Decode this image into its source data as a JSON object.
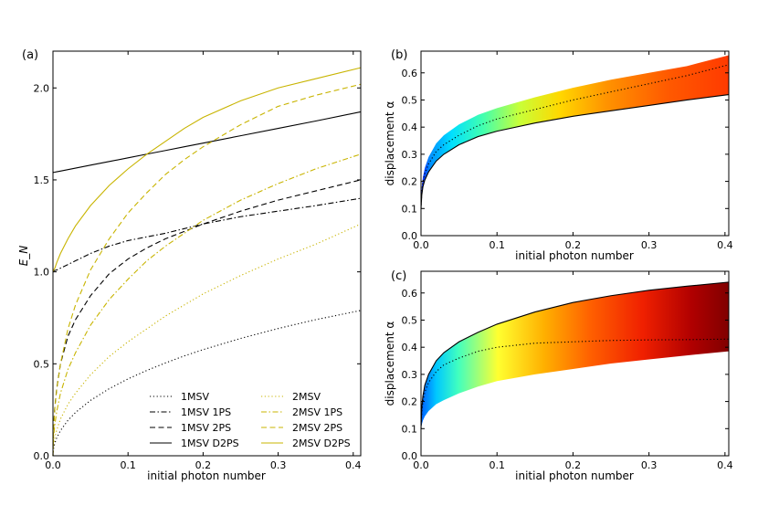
{
  "chart_data": [
    {
      "panel": "(a)",
      "type": "line",
      "xlabel": "initial photon number",
      "ylabel": "E_N",
      "xlim": [
        0,
        0.41
      ],
      "ylim": [
        0,
        2.2
      ],
      "xticks": [
        "0.0",
        "0.1",
        "0.2",
        "0.3",
        "0.4"
      ],
      "yticks": [
        "0.0",
        "0.5",
        "1.0",
        "1.5",
        "2.0"
      ],
      "legend_placement": "lower-right",
      "colors": {
        "black": "#000000",
        "olive": "#c8b400"
      },
      "x": [
        0,
        0.00025,
        0.001,
        0.0025,
        0.005,
        0.01,
        0.02,
        0.03,
        0.05,
        0.075,
        0.1,
        0.125,
        0.15,
        0.175,
        0.2,
        0.25,
        0.3,
        0.35,
        0.41
      ],
      "series": [
        {
          "name": "1MSV",
          "color": "#000000",
          "dash": "dotted",
          "values": [
            0,
            0.0217,
            0.0434,
            0.0687,
            0.0971,
            0.137,
            0.193,
            0.235,
            0.301,
            0.365,
            0.418,
            0.464,
            0.505,
            0.543,
            0.577,
            0.638,
            0.692,
            0.74,
            0.79
          ]
        },
        {
          "name": "1MSV 1PS",
          "color": "#000000",
          "dash": "dashdot",
          "values": [
            1.0,
            1.0025,
            1.005,
            1.0075,
            1.01,
            1.02,
            1.04,
            1.06,
            1.1,
            1.14,
            1.17,
            1.19,
            1.21,
            1.235,
            1.26,
            1.3,
            1.33,
            1.36,
            1.4
          ]
        },
        {
          "name": "1MSV 2PS",
          "color": "#000000",
          "dash": "dashed",
          "values": [
            0,
            0.09,
            0.17,
            0.265,
            0.365,
            0.5,
            0.65,
            0.74,
            0.87,
            0.99,
            1.07,
            1.13,
            1.18,
            1.22,
            1.26,
            1.33,
            1.39,
            1.44,
            1.5
          ]
        },
        {
          "name": "1MSV D2PS",
          "color": "#000000",
          "dash": "solid",
          "values": [
            1.54,
            1.54,
            1.541,
            1.542,
            1.544,
            1.548,
            1.556,
            1.564,
            1.58,
            1.6,
            1.62,
            1.64,
            1.66,
            1.68,
            1.7,
            1.74,
            1.78,
            1.82,
            1.87
          ]
        },
        {
          "name": "2MSV",
          "color": "#c8b400",
          "dash": "dotted",
          "values": [
            0,
            0.03,
            0.065,
            0.1,
            0.14,
            0.2,
            0.28,
            0.34,
            0.44,
            0.54,
            0.62,
            0.69,
            0.76,
            0.82,
            0.88,
            0.98,
            1.07,
            1.15,
            1.26
          ]
        },
        {
          "name": "2MSV 1PS",
          "color": "#c8b400",
          "dash": "dashdot",
          "values": [
            0,
            0.05,
            0.11,
            0.17,
            0.24,
            0.34,
            0.47,
            0.56,
            0.71,
            0.85,
            0.96,
            1.06,
            1.14,
            1.21,
            1.28,
            1.39,
            1.48,
            1.56,
            1.64
          ]
        },
        {
          "name": "2MSV 2PS",
          "color": "#c8b400",
          "dash": "dashed",
          "values": [
            0,
            0.08,
            0.16,
            0.26,
            0.36,
            0.5,
            0.69,
            0.82,
            1.01,
            1.18,
            1.32,
            1.43,
            1.53,
            1.61,
            1.68,
            1.8,
            1.9,
            1.96,
            2.02
          ]
        },
        {
          "name": "2MSV D2PS",
          "color": "#c8b400",
          "dash": "solid",
          "values": [
            1.0,
            1.0,
            1.01,
            1.02,
            1.05,
            1.1,
            1.18,
            1.25,
            1.36,
            1.47,
            1.56,
            1.64,
            1.71,
            1.78,
            1.84,
            1.93,
            2.0,
            2.05,
            2.11
          ]
        }
      ]
    },
    {
      "panel": "(b)",
      "type": "area",
      "xlabel": "initial photon number",
      "ylabel": "displacement α",
      "xlim": [
        0,
        0.405
      ],
      "ylim": [
        0,
        0.68
      ],
      "xticks": [
        "0.0",
        "0.1",
        "0.2",
        "0.3",
        "0.4"
      ],
      "yticks": [
        "0.0",
        "0.1",
        "0.2",
        "0.3",
        "0.4",
        "0.5",
        "0.6"
      ],
      "colormap": "jet",
      "x": [
        0,
        0.001,
        0.0025,
        0.005,
        0.01,
        0.02,
        0.03,
        0.05,
        0.075,
        0.1,
        0.15,
        0.2,
        0.25,
        0.3,
        0.35,
        0.405
      ],
      "lower_boundary": [
        0.1,
        0.15,
        0.18,
        0.205,
        0.235,
        0.275,
        0.3,
        0.335,
        0.365,
        0.385,
        0.415,
        0.44,
        0.46,
        0.48,
        0.5,
        0.52
      ],
      "upper_boundary": [
        0.12,
        0.18,
        0.215,
        0.25,
        0.29,
        0.34,
        0.37,
        0.41,
        0.445,
        0.47,
        0.51,
        0.545,
        0.575,
        0.6,
        0.625,
        0.665
      ],
      "dotted_curve": [
        0.1,
        0.16,
        0.2,
        0.23,
        0.265,
        0.31,
        0.335,
        0.37,
        0.405,
        0.43,
        0.465,
        0.5,
        0.53,
        0.56,
        0.59,
        0.63
      ],
      "solid_curve": [
        0.1,
        0.15,
        0.18,
        0.205,
        0.235,
        0.275,
        0.3,
        0.335,
        0.365,
        0.385,
        0.415,
        0.44,
        0.46,
        0.48,
        0.5,
        0.52
      ]
    },
    {
      "panel": "(c)",
      "type": "area",
      "xlabel": "initial photon number",
      "ylabel": "displacement α",
      "xlim": [
        0,
        0.405
      ],
      "ylim": [
        0,
        0.68
      ],
      "xticks": [
        "0.0",
        "0.1",
        "0.2",
        "0.3",
        "0.4"
      ],
      "yticks": [
        "0.0",
        "0.1",
        "0.2",
        "0.3",
        "0.4",
        "0.5",
        "0.6"
      ],
      "colormap": "jet",
      "x": [
        0,
        0.001,
        0.0025,
        0.005,
        0.01,
        0.02,
        0.03,
        0.05,
        0.075,
        0.1,
        0.15,
        0.2,
        0.25,
        0.3,
        0.35,
        0.405
      ],
      "lower_boundary": [
        0.1,
        0.115,
        0.13,
        0.145,
        0.165,
        0.19,
        0.205,
        0.23,
        0.255,
        0.275,
        0.3,
        0.32,
        0.34,
        0.355,
        0.37,
        0.385
      ],
      "upper_boundary": [
        0.1,
        0.18,
        0.22,
        0.26,
        0.3,
        0.35,
        0.38,
        0.42,
        0.455,
        0.485,
        0.53,
        0.565,
        0.59,
        0.61,
        0.625,
        0.64
      ],
      "dotted_curve": [
        0.1,
        0.16,
        0.2,
        0.235,
        0.27,
        0.31,
        0.335,
        0.36,
        0.385,
        0.4,
        0.415,
        0.42,
        0.425,
        0.427,
        0.428,
        0.43
      ],
      "solid_curve": [
        0.1,
        0.18,
        0.22,
        0.26,
        0.3,
        0.35,
        0.38,
        0.42,
        0.455,
        0.485,
        0.53,
        0.565,
        0.59,
        0.61,
        0.625,
        0.64
      ]
    }
  ]
}
